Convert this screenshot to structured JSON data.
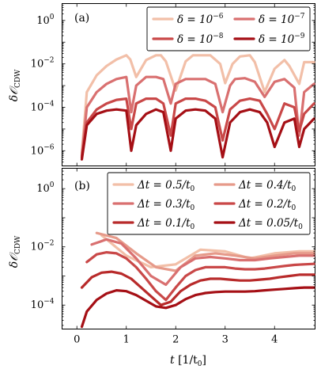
{
  "colors": {
    "c1": "#f2bfa8",
    "c2": "#e69a8a",
    "c3": "#d97070",
    "c4": "#c94848",
    "c5": "#b82a2a",
    "c6": "#a50f15"
  },
  "chart_data": [
    {
      "type": "line",
      "panel_label": "(a)",
      "ylabel": "δ𝒪CDW",
      "yscale": "log",
      "ylim": [
        2e-07,
        6
      ],
      "xlim": [
        -0.3,
        4.82
      ],
      "yticks": [
        {
          "value": 1,
          "label_base": "10",
          "label_exp": "0"
        },
        {
          "value": 0.01,
          "label_base": "10",
          "label_exp": "−2"
        },
        {
          "value": 0.0001,
          "label_base": "10",
          "label_exp": "−4"
        },
        {
          "value": 1e-06,
          "label_base": "10",
          "label_exp": "−6"
        }
      ],
      "legend_position": "top-right",
      "series": [
        {
          "name": "δ = 10−6",
          "legend_base": "δ = 10",
          "legend_exp": "−6",
          "color": "c1",
          "x": [
            0.1,
            0.2,
            0.4,
            0.6,
            0.8,
            1.0,
            1.08,
            1.2,
            1.4,
            1.6,
            1.7,
            1.8,
            2.0,
            2.2,
            2.35,
            2.5,
            2.7,
            2.9,
            3.0,
            3.15,
            3.3,
            3.5,
            3.6,
            3.8,
            4.0,
            4.2,
            4.3,
            4.5,
            4.6,
            4.8
          ],
          "y": [
            8e-07,
            0.0005,
            0.003,
            0.008,
            0.016,
            0.025,
            0.016,
            0.0025,
            0.015,
            0.025,
            0.025,
            0.013,
            0.0006,
            0.013,
            0.025,
            0.025,
            0.025,
            0.01,
            0.0013,
            0.01,
            0.022,
            0.025,
            0.012,
            0.0005,
            0.006,
            0.015,
            0.008,
            0.0012,
            0.012,
            0.012
          ]
        },
        {
          "name": "δ = 10−7",
          "legend_base": "δ = 10",
          "legend_exp": "−7",
          "color": "c3",
          "x": [
            0.1,
            0.2,
            0.4,
            0.6,
            0.8,
            1.0,
            1.1,
            1.2,
            1.4,
            1.6,
            1.75,
            1.9,
            2.0,
            2.2,
            2.4,
            2.6,
            2.8,
            2.95,
            3.1,
            3.2,
            3.4,
            3.6,
            3.8,
            4.0,
            4.2,
            4.4,
            4.5,
            4.6,
            4.8
          ],
          "y": [
            6e-07,
            0.0001,
            0.0005,
            0.0012,
            0.002,
            0.0025,
            6e-05,
            0.001,
            0.0025,
            0.0025,
            0.002,
            0.00015,
            0.0012,
            0.002,
            0.002,
            0.002,
            0.0012,
            6e-05,
            0.001,
            0.002,
            0.0022,
            0.0015,
            0.0003,
            0.0015,
            0.002,
            0.0008,
            5e-06,
            0.0005,
            0.0012
          ]
        },
        {
          "name": "δ = 10−8",
          "legend_base": "δ = 10",
          "legend_exp": "−8",
          "color": "c4",
          "x": [
            0.1,
            0.2,
            0.4,
            0.6,
            0.8,
            1.0,
            1.1,
            1.2,
            1.4,
            1.6,
            1.75,
            1.9,
            2.0,
            2.2,
            2.4,
            2.6,
            2.8,
            2.95,
            3.1,
            3.3,
            3.5,
            3.7,
            3.85,
            4.0,
            4.2,
            4.4,
            4.5,
            4.6,
            4.8
          ],
          "y": [
            5e-07,
            2e-05,
            8e-05,
            0.00015,
            0.00022,
            0.00025,
            1e-05,
            0.00015,
            0.00025,
            0.00025,
            0.00015,
            5e-06,
            0.00015,
            0.00025,
            0.00025,
            0.0002,
            0.0001,
            3e-06,
            8e-05,
            0.0002,
            0.00025,
            0.0002,
            5e-05,
            1e-05,
            0.00015,
            0.0001,
            8e-06,
            5e-05,
            0.00015
          ]
        },
        {
          "name": "δ = 10−9",
          "legend_base": "δ = 10",
          "legend_exp": "−9",
          "color": "c6",
          "x": [
            0.1,
            0.2,
            0.4,
            0.6,
            0.8,
            1.0,
            1.1,
            1.2,
            1.4,
            1.6,
            1.75,
            1.9,
            2.0,
            2.2,
            2.4,
            2.6,
            2.8,
            2.95,
            3.1,
            3.3,
            3.5,
            3.7,
            3.85,
            4.0,
            4.2,
            4.4,
            4.5,
            4.6,
            4.8
          ],
          "y": [
            4e-07,
            1.5e-05,
            5e-05,
            7e-05,
            8e-05,
            7e-05,
            1e-06,
            1.5e-05,
            5e-05,
            8e-05,
            6e-05,
            1e-06,
            3e-05,
            7e-05,
            8e-05,
            7e-05,
            3e-05,
            5e-07,
            2e-05,
            6e-05,
            8e-05,
            6e-05,
            2e-05,
            1.5e-06,
            2e-05,
            3e-05,
            1.5e-06,
            1e-05,
            3e-05
          ]
        }
      ]
    },
    {
      "type": "line",
      "panel_label": "(b)",
      "ylabel": "δ𝒪CDW",
      "xlabel_var": "t",
      "xlabel_unit": "[1/t0]",
      "yscale": "log",
      "ylim": [
        1.5e-05,
        5
      ],
      "xlim": [
        -0.3,
        4.82
      ],
      "xticks": [
        0,
        1,
        2,
        3,
        4
      ],
      "yticks": [
        {
          "value": 1,
          "label_base": "10",
          "label_exp": "0"
        },
        {
          "value": 0.01,
          "label_base": "10",
          "label_exp": "−2"
        },
        {
          "value": 0.0001,
          "label_base": "10",
          "label_exp": "−4"
        }
      ],
      "legend_position": "top-right",
      "series": [
        {
          "name": "Δt = 0.5/t0",
          "legend": "Δt = 0.5/t",
          "legend_sub": "0",
          "color": "c1",
          "x": [
            0.5,
            1.0,
            1.5,
            2.0,
            2.5,
            3.0,
            3.5,
            4.0,
            4.5,
            4.8
          ],
          "y": [
            0.025,
            0.005,
            0.002,
            0.0025,
            0.008,
            0.007,
            0.004,
            0.006,
            0.007,
            0.007
          ]
        },
        {
          "name": "Δt = 0.4/t0",
          "legend": "Δt = 0.4/t",
          "legend_sub": "0",
          "color": "c2",
          "x": [
            0.4,
            0.8,
            1.2,
            1.6,
            2.0,
            2.4,
            2.8,
            3.2,
            3.6,
            4.0,
            4.4,
            4.8
          ],
          "y": [
            0.03,
            0.02,
            0.006,
            0.002,
            0.0015,
            0.005,
            0.006,
            0.005,
            0.004,
            0.005,
            0.006,
            0.006
          ]
        },
        {
          "name": "Δt = 0.3/t0",
          "legend": "Δt = 0.3/t",
          "legend_sub": "0",
          "color": "c3",
          "x": [
            0.3,
            0.6,
            0.9,
            1.2,
            1.5,
            1.8,
            2.1,
            2.4,
            2.7,
            3.0,
            3.3,
            3.6,
            3.9,
            4.2,
            4.5,
            4.8
          ],
          "y": [
            0.012,
            0.018,
            0.013,
            0.004,
            0.001,
            0.0005,
            0.002,
            0.004,
            0.0045,
            0.004,
            0.0035,
            0.0035,
            0.004,
            0.0045,
            0.005,
            0.005
          ]
        },
        {
          "name": "Δt = 0.2/t0",
          "legend": "Δt = 0.2/t",
          "legend_sub": "0",
          "color": "c4",
          "x": [
            0.2,
            0.4,
            0.6,
            0.8,
            1.0,
            1.2,
            1.4,
            1.6,
            1.8,
            2.0,
            2.2,
            2.4,
            2.6,
            2.8,
            3.0,
            3.2,
            3.4,
            3.6,
            3.8,
            4.0,
            4.2,
            4.4,
            4.6,
            4.8
          ],
          "y": [
            0.003,
            0.0055,
            0.0065,
            0.006,
            0.004,
            0.002,
            0.0008,
            0.0003,
            0.00015,
            0.0004,
            0.001,
            0.0016,
            0.002,
            0.002,
            0.002,
            0.0018,
            0.0017,
            0.0017,
            0.0018,
            0.002,
            0.0022,
            0.0024,
            0.0025,
            0.0026
          ]
        },
        {
          "name": "Δt = 0.1/t0",
          "legend": "Δt = 0.1/t",
          "legend_sub": "0",
          "color": "c5",
          "x": [
            0.1,
            0.3,
            0.5,
            0.7,
            0.9,
            1.1,
            1.3,
            1.5,
            1.7,
            1.9,
            2.1,
            2.3,
            2.5,
            2.7,
            2.9,
            3.1,
            3.3,
            3.5,
            3.7,
            3.9,
            4.1,
            4.3,
            4.5,
            4.7,
            4.8
          ],
          "y": [
            0.0004,
            0.0009,
            0.0013,
            0.0014,
            0.0012,
            0.0008,
            0.0004,
            0.0002,
            0.0001,
            0.00013,
            0.0003,
            0.0005,
            0.0007,
            0.0008,
            0.0008,
            0.00075,
            0.0007,
            0.0007,
            0.00075,
            0.0008,
            0.0009,
            0.001,
            0.0011,
            0.0011,
            0.0011
          ]
        },
        {
          "name": "Δt = 0.05/t0",
          "legend": "Δt = 0.05/t",
          "legend_sub": "0",
          "color": "c6",
          "x": [
            0.1,
            0.2,
            0.4,
            0.6,
            0.8,
            1.0,
            1.2,
            1.4,
            1.6,
            1.8,
            2.0,
            2.2,
            2.4,
            2.6,
            2.8,
            3.0,
            3.2,
            3.4,
            3.6,
            3.8,
            4.0,
            4.2,
            4.4,
            4.6,
            4.8
          ],
          "y": [
            1.8e-05,
            6e-05,
            0.00015,
            0.00025,
            0.00032,
            0.0003,
            0.00022,
            0.00014,
            9e-05,
            8e-05,
            0.0001,
            0.00016,
            0.00022,
            0.00026,
            0.00028,
            0.00029,
            0.00029,
            0.00029,
            0.0003,
            0.00032,
            0.00034,
            0.00036,
            0.00038,
            0.0004,
            0.0004
          ]
        }
      ]
    }
  ]
}
